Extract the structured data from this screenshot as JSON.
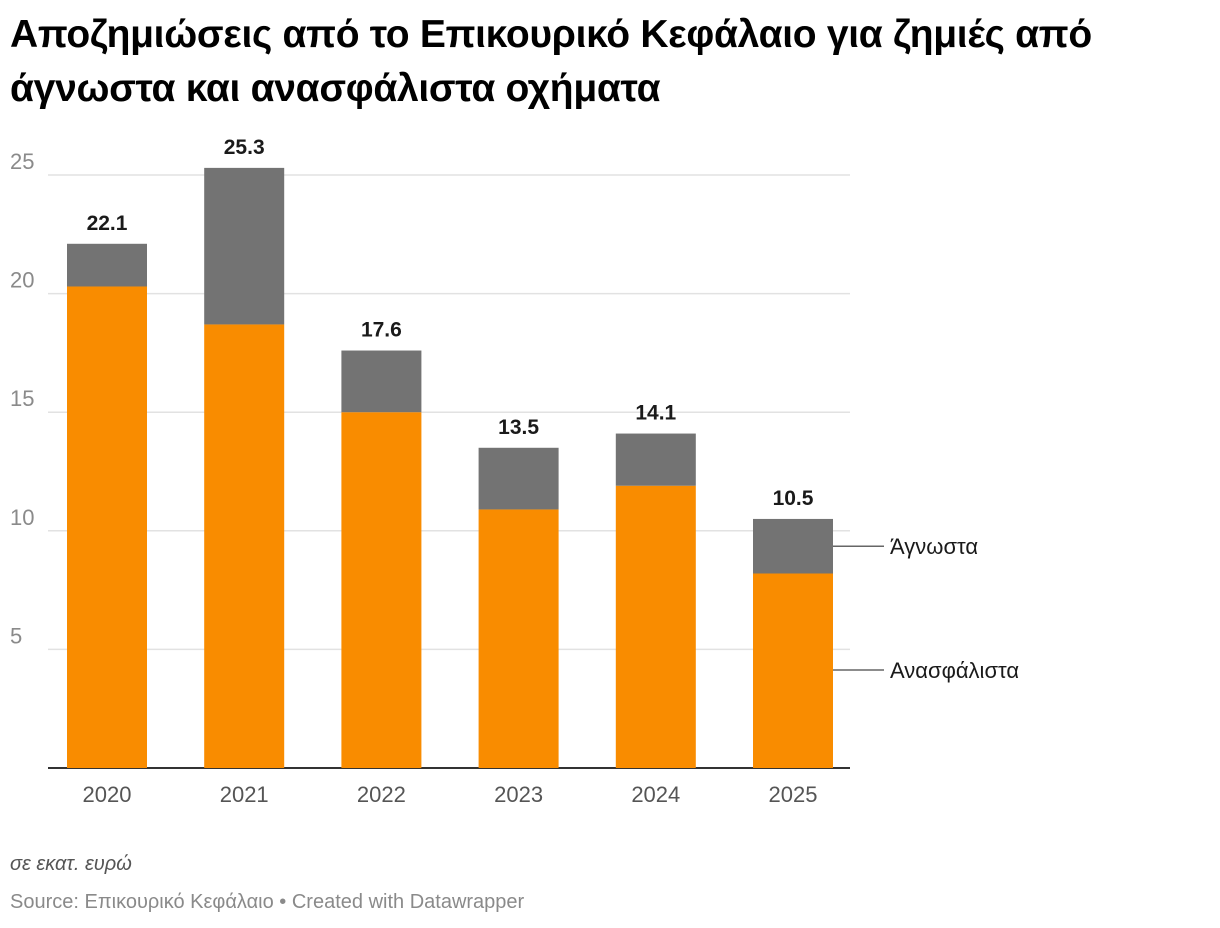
{
  "header": {
    "title": "Αποζημιώσεις από το Επικουρικό Κεφάλαιο για ζημιές από άγνωστα και ανασφάλιστα οχήματα"
  },
  "footer": {
    "note": "σε εκατ. ευρώ",
    "source": "Source: Επικουρικό Κεφάλαιο • Created with Datawrapper"
  },
  "colors": {
    "uninsured": "#f98c00",
    "unknown": "#737373",
    "grid": "#e2e2e2",
    "axis": "#333333"
  },
  "chart_data": {
    "type": "bar",
    "stacked": true,
    "title": "Αποζημιώσεις από το Επικουρικό Κεφάλαιο για ζημιές από άγνωστα και ανασφάλιστα οχήματα",
    "categories": [
      "2020",
      "2021",
      "2022",
      "2023",
      "2024",
      "2025"
    ],
    "series": [
      {
        "name": "Ανασφάλιστα",
        "values": [
          20.3,
          18.7,
          15.0,
          10.9,
          11.9,
          8.2
        ]
      },
      {
        "name": "Άγνωστα",
        "values": [
          1.8,
          6.6,
          2.6,
          2.6,
          2.2,
          2.3
        ]
      }
    ],
    "totals": [
      "22.1",
      "25.3",
      "17.6",
      "13.5",
      "14.1",
      "10.5"
    ],
    "ylim": [
      0,
      25.6
    ],
    "yticks": [
      "5",
      "10",
      "15",
      "20",
      "25"
    ],
    "xlabel": "",
    "ylabel": "",
    "grid": true,
    "legend": "direct labels right of last bar"
  }
}
